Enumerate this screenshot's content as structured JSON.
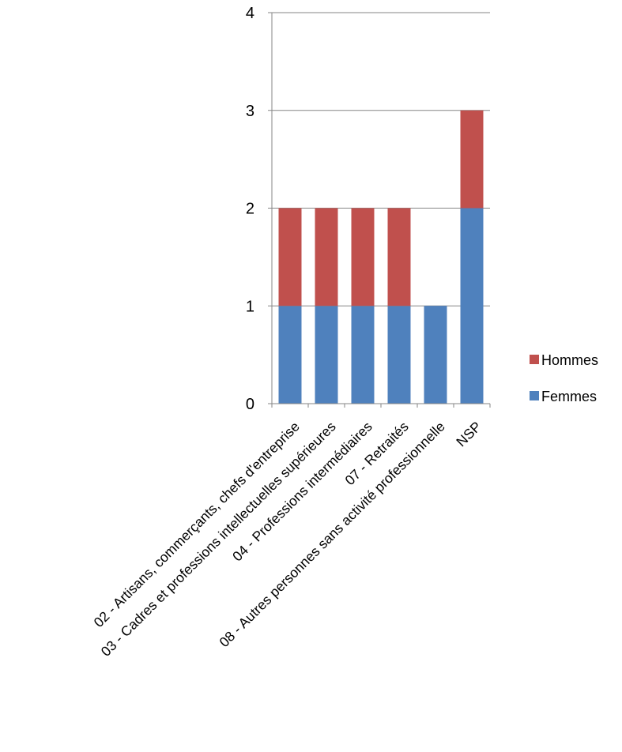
{
  "chart_data": {
    "type": "bar",
    "stacked": true,
    "categories": [
      "02 - Artisans, commerçants, chefs d'entreprise",
      "03 - Cadres et professions intellectuelles supérieures",
      "04 - Professions intermédiaires",
      "07 - Retraités",
      "08 - Autres personnes sans activité professionnelle",
      "NSP"
    ],
    "series": [
      {
        "name": "Femmes",
        "color": "#4f81bd",
        "values": [
          1,
          1,
          1,
          1,
          1,
          2
        ]
      },
      {
        "name": "Hommes",
        "color": "#c0504d",
        "values": [
          1,
          1,
          1,
          1,
          0,
          1
        ]
      }
    ],
    "ylim": [
      0,
      4
    ],
    "yticks": [
      "0",
      "1",
      "2",
      "3",
      "4"
    ],
    "grid": true,
    "legend_position": "right"
  }
}
